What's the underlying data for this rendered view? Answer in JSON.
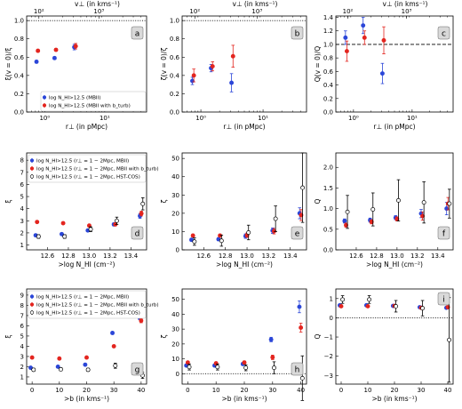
{
  "colors": {
    "blue": "#2b46d8",
    "red": "#e3251f",
    "open": "#ffffff",
    "black": "#000000",
    "labelbox": "#d9d9d9"
  },
  "shared": {
    "xlabel_r": "r⊥ (in pMpc)",
    "xlabel_v": "v⊥ (in kms⁻¹)",
    "xlabel_N": ">log N_HI (cm⁻²)",
    "xlabel_b": ">b (in kms⁻¹)"
  },
  "legends": {
    "top": [
      "log N_HI>12.5 (MBII)",
      "log N_HI>12.5 (MBII with b_turb)"
    ],
    "rows": [
      "log N_HI>12.5 (r⊥ = 1 − 2Mpc, MBII)",
      "log N_HI>12.5 (r⊥ = 1 − 2Mpc, MBII with b_turb)",
      "log N_HI>12.5 (r⊥ = 1 − 2Mpc, HST-COS)"
    ]
  },
  "chart_data": [
    {
      "id": "a",
      "type": "scatter",
      "panel_label": "a",
      "xscale": "log",
      "xlim": [
        0.5,
        50
      ],
      "ylim": [
        0,
        1.05
      ],
      "xticks": [
        1,
        10
      ],
      "xticklabels": [
        "10⁰",
        "10¹"
      ],
      "yticks": [
        0,
        0.2,
        0.4,
        0.6,
        0.8,
        1.0
      ],
      "yticklabels": [
        "0.0",
        "0.2",
        "0.4",
        "0.6",
        "0.8",
        "1.0"
      ],
      "top_xticks": [
        0.8,
        8
      ],
      "top_xticklabels": [
        "10²",
        "10³"
      ],
      "ylabel": "ξ(v = 0)/ξ",
      "hline": 1.0,
      "hline_style": "dotted",
      "series": [
        {
          "name": "log N_HI>12.5 (MBII)",
          "color": "blue",
          "x": [
            0.75,
            1.5,
            3.2
          ],
          "y": [
            0.55,
            0.59,
            0.71
          ],
          "err": [
            0.015,
            0.015,
            0.03
          ]
        },
        {
          "name": "log N_HI>12.5 (MBII with b_turb)",
          "color": "red",
          "x": [
            0.75,
            1.5,
            3.2
          ],
          "y": [
            0.67,
            0.68,
            0.72
          ],
          "err": [
            0.015,
            0.015,
            0.03
          ]
        }
      ]
    },
    {
      "id": "b",
      "type": "scatter",
      "panel_label": "b",
      "xscale": "log",
      "xlim": [
        0.5,
        50
      ],
      "ylim": [
        0,
        1.05
      ],
      "xticks": [
        1,
        10
      ],
      "xticklabels": [
        "10⁰",
        "10¹"
      ],
      "yticks": [
        0,
        0.2,
        0.4,
        0.6,
        0.8,
        1.0
      ],
      "yticklabels": [
        "0.0",
        "0.2",
        "0.4",
        "0.6",
        "0.8",
        "1.0"
      ],
      "top_xticks": [
        0.8,
        8
      ],
      "top_xticklabels": [
        "10²",
        "10³"
      ],
      "ylabel": "ζ(v = 0)/ζ",
      "hline": 1.0,
      "hline_style": "dotted",
      "series": [
        {
          "name": "MBII",
          "color": "blue",
          "x": [
            0.75,
            1.5,
            3.2
          ],
          "y": [
            0.34,
            0.48,
            0.32
          ],
          "err": [
            0.04,
            0.04,
            0.1
          ]
        },
        {
          "name": "MBII with b_turb",
          "color": "red",
          "x": [
            0.75,
            1.5,
            3.2
          ],
          "y": [
            0.4,
            0.5,
            0.61
          ],
          "err": [
            0.07,
            0.05,
            0.12
          ]
        }
      ]
    },
    {
      "id": "c",
      "type": "scatter",
      "panel_label": "c",
      "xscale": "log",
      "xlim": [
        0.5,
        50
      ],
      "ylim": [
        0,
        1.42
      ],
      "xticks": [
        1,
        10
      ],
      "xticklabels": [
        "10⁰",
        "10¹"
      ],
      "yticks": [
        0,
        0.2,
        0.4,
        0.6,
        0.8,
        1.0,
        1.2,
        1.4
      ],
      "yticklabels": [
        "0.0",
        "0.2",
        "0.4",
        "0.6",
        "0.8",
        "1.0",
        "1.2",
        "1.4"
      ],
      "top_xticks": [
        0.8,
        8
      ],
      "top_xticklabels": [
        "10²",
        "10³"
      ],
      "ylabel": "Q(v = 0)/Q",
      "hline": 1.0,
      "hline_style": "dashed",
      "series": [
        {
          "name": "MBII",
          "color": "blue",
          "x": [
            0.75,
            1.5,
            3.2
          ],
          "y": [
            1.1,
            1.28,
            0.57
          ],
          "err": [
            0.1,
            0.12,
            0.15
          ]
        },
        {
          "name": "MBII with b_turb",
          "color": "red",
          "x": [
            0.75,
            1.5,
            3.2
          ],
          "y": [
            0.9,
            1.1,
            1.06
          ],
          "err": [
            0.15,
            0.1,
            0.2
          ]
        }
      ]
    },
    {
      "id": "d",
      "type": "scatter",
      "panel_label": "d",
      "xlim": [
        12.4,
        13.55
      ],
      "ylim": [
        0.6,
        8.6
      ],
      "xticks": [
        12.6,
        12.8,
        13.0,
        13.2,
        13.4
      ],
      "xticklabels": [
        "12.6",
        "12.8",
        "13.0",
        "13.2",
        "13.4"
      ],
      "yticks": [
        1,
        2,
        3,
        4,
        5,
        6,
        7,
        8
      ],
      "yticklabels": [
        "1",
        "2",
        "3",
        "4",
        "5",
        "6",
        "7",
        "8"
      ],
      "ylabel": "ξ",
      "series": [
        {
          "name": "MBII",
          "color": "blue",
          "x": [
            12.5,
            12.75,
            13.0,
            13.25,
            13.5
          ],
          "y": [
            1.8,
            1.9,
            2.2,
            2.7,
            3.4
          ],
          "err": [
            0.08,
            0.08,
            0.1,
            0.12,
            0.2
          ]
        },
        {
          "name": "MBII with b_turb",
          "color": "red",
          "x": [
            12.5,
            12.75,
            13.0,
            13.25,
            13.5
          ],
          "y": [
            2.9,
            2.8,
            2.6,
            2.7,
            3.6
          ],
          "err": [
            0.08,
            0.08,
            0.1,
            0.12,
            0.2
          ]
        },
        {
          "name": "HST-COS",
          "color": "open",
          "x": [
            12.5,
            12.75,
            13.0,
            13.25,
            13.5
          ],
          "y": [
            1.7,
            1.7,
            2.3,
            3.0,
            4.4
          ],
          "err": [
            0.15,
            0.15,
            0.2,
            0.3,
            0.5
          ]
        }
      ]
    },
    {
      "id": "e",
      "type": "scatter",
      "panel_label": "e",
      "xlim": [
        12.4,
        13.55
      ],
      "ylim": [
        0,
        53
      ],
      "xticks": [
        12.6,
        12.8,
        13.0,
        13.2,
        13.4
      ],
      "xticklabels": [
        "12.6",
        "12.8",
        "13.0",
        "13.2",
        "13.4"
      ],
      "yticks": [
        0,
        10,
        20,
        30,
        40,
        50
      ],
      "yticklabels": [
        "0",
        "10",
        "20",
        "30",
        "40",
        "50"
      ],
      "ylabel": "ζ",
      "series": [
        {
          "name": "MBII",
          "color": "blue",
          "x": [
            12.5,
            12.75,
            13.0,
            13.25,
            13.5
          ],
          "y": [
            5.5,
            5.8,
            7.5,
            10.5,
            20
          ],
          "err": [
            0.8,
            0.8,
            1.2,
            1.5,
            3
          ]
        },
        {
          "name": "MBII with b_turb",
          "color": "red",
          "x": [
            12.5,
            12.75,
            13.0,
            13.25,
            13.5
          ],
          "y": [
            7.8,
            7.8,
            8.0,
            10.2,
            19
          ],
          "err": [
            0.8,
            0.8,
            1.2,
            1.5,
            3
          ]
        },
        {
          "name": "HST-COS",
          "color": "open",
          "x": [
            12.5,
            12.75,
            13.0,
            13.25,
            13.5
          ],
          "y": [
            4.5,
            5.0,
            9.5,
            17,
            34
          ],
          "err": [
            2,
            3,
            4,
            7,
            19
          ]
        }
      ]
    },
    {
      "id": "f",
      "type": "scatter",
      "panel_label": "f",
      "xlim": [
        12.4,
        13.55
      ],
      "ylim": [
        0,
        2.35
      ],
      "xticks": [
        12.6,
        12.8,
        13.0,
        13.2,
        13.4
      ],
      "xticklabels": [
        "12.6",
        "12.8",
        "13.0",
        "13.2",
        "13.4"
      ],
      "yticks": [
        0,
        0.5,
        1.0,
        1.5,
        2.0
      ],
      "yticklabels": [
        "0.0",
        "0.5",
        "1.0",
        "1.5",
        "2.0"
      ],
      "ylabel": "Q",
      "series": [
        {
          "name": "MBII",
          "color": "blue",
          "x": [
            12.5,
            12.75,
            13.0,
            13.25,
            13.5
          ],
          "y": [
            0.7,
            0.72,
            0.78,
            0.88,
            1.0
          ],
          "err": [
            0.05,
            0.05,
            0.05,
            0.1,
            0.15
          ]
        },
        {
          "name": "MBII with b_turb",
          "color": "red",
          "x": [
            12.5,
            12.75,
            13.0,
            13.25,
            13.5
          ],
          "y": [
            0.6,
            0.68,
            0.75,
            0.82,
            1.12
          ],
          "err": [
            0.05,
            0.05,
            0.05,
            0.1,
            0.15
          ]
        },
        {
          "name": "HST-COS",
          "color": "open",
          "x": [
            12.5,
            12.75,
            13.0,
            13.25,
            13.5
          ],
          "y": [
            0.92,
            0.98,
            1.2,
            1.15,
            1.12
          ],
          "err": [
            0.4,
            0.4,
            0.5,
            0.5,
            0.35
          ]
        }
      ]
    },
    {
      "id": "g",
      "type": "scatter",
      "panel_label": "g",
      "xlim": [
        -2,
        42
      ],
      "ylim": [
        0.3,
        9.6
      ],
      "xticks": [
        0,
        10,
        20,
        30,
        40
      ],
      "xticklabels": [
        "0",
        "10",
        "20",
        "30",
        "40"
      ],
      "yticks": [
        1,
        2,
        3,
        4,
        5,
        6,
        7,
        8,
        9
      ],
      "yticklabels": [
        "1",
        "2",
        "3",
        "4",
        "5",
        "6",
        "7",
        "8",
        "9"
      ],
      "ylabel": "ξ",
      "series": [
        {
          "name": "MBII",
          "color": "blue",
          "x": [
            0,
            10,
            20,
            30,
            40
          ],
          "y": [
            1.9,
            2.0,
            2.2,
            5.3,
            6.8
          ],
          "err": [
            0.08,
            0.08,
            0.08,
            0.12,
            0.2
          ]
        },
        {
          "name": "MBII with b_turb",
          "color": "red",
          "x": [
            0,
            10,
            20,
            30,
            40
          ],
          "y": [
            2.9,
            2.8,
            2.9,
            4.0,
            6.5
          ],
          "err": [
            0.08,
            0.08,
            0.08,
            0.12,
            0.2
          ]
        },
        {
          "name": "HST-COS",
          "color": "open",
          "x": [
            0,
            10,
            20,
            30,
            40
          ],
          "y": [
            1.7,
            1.75,
            1.7,
            2.1,
            1.15
          ],
          "err": [
            0.15,
            0.15,
            0.15,
            0.25,
            0.3
          ]
        }
      ]
    },
    {
      "id": "h",
      "type": "scatter",
      "panel_label": "h",
      "xlim": [
        -2,
        42
      ],
      "ylim": [
        -7,
        57
      ],
      "xticks": [
        0,
        10,
        20,
        30,
        40
      ],
      "xticklabels": [
        "0",
        "10",
        "20",
        "30",
        "40"
      ],
      "yticks": [
        0,
        10,
        20,
        30,
        40,
        50
      ],
      "yticklabels": [
        "0",
        "10",
        "20",
        "30",
        "40",
        "50"
      ],
      "ylabel": "ζ",
      "hline": 0,
      "hline_style": "dotted",
      "series": [
        {
          "name": "MBII",
          "color": "blue",
          "x": [
            0,
            10,
            20,
            30,
            40
          ],
          "y": [
            5.5,
            5.5,
            6.5,
            23,
            45
          ],
          "err": [
            0.8,
            0.8,
            1,
            1.5,
            4
          ]
        },
        {
          "name": "MBII with b_turb",
          "color": "red",
          "x": [
            0,
            10,
            20,
            30,
            40
          ],
          "y": [
            7.5,
            7.0,
            7.5,
            11,
            31
          ],
          "err": [
            0.8,
            0.8,
            1,
            1.5,
            3
          ]
        },
        {
          "name": "HST-COS",
          "color": "open",
          "x": [
            0,
            10,
            20,
            30,
            40
          ],
          "y": [
            4.5,
            4.5,
            4.0,
            4.0,
            -3
          ],
          "err": [
            2,
            2,
            2,
            4,
            15
          ]
        }
      ]
    },
    {
      "id": "i",
      "type": "scatter",
      "panel_label": "i",
      "xlim": [
        -2,
        42
      ],
      "ylim": [
        -3.45,
        1.5
      ],
      "xticks": [
        0,
        10,
        20,
        30,
        40
      ],
      "xticklabels": [
        "0",
        "10",
        "20",
        "30",
        "40"
      ],
      "yticks": [
        -3,
        -2,
        -1,
        0,
        1
      ],
      "yticklabels": [
        "−3",
        "−2",
        "−1",
        "0",
        "1"
      ],
      "ylabel": "Q",
      "hline": 0,
      "hline_style": "dotted",
      "series": [
        {
          "name": "MBII",
          "color": "blue",
          "x": [
            0,
            10,
            20,
            30,
            40
          ],
          "y": [
            0.65,
            0.65,
            0.62,
            0.55,
            0.52
          ],
          "err": [
            0.04,
            0.04,
            0.04,
            0.05,
            0.05
          ]
        },
        {
          "name": "MBII with b_turb",
          "color": "red",
          "x": [
            0,
            10,
            20,
            30,
            40
          ],
          "y": [
            0.6,
            0.6,
            0.62,
            0.52,
            0.55
          ],
          "err": [
            0.04,
            0.04,
            0.04,
            0.05,
            0.05
          ]
        },
        {
          "name": "HST-COS",
          "color": "open",
          "x": [
            0,
            10,
            20,
            30,
            40
          ],
          "y": [
            0.95,
            0.95,
            0.6,
            0.5,
            -1.15
          ],
          "err": [
            0.2,
            0.2,
            0.3,
            0.4,
            2.2
          ]
        }
      ]
    }
  ]
}
